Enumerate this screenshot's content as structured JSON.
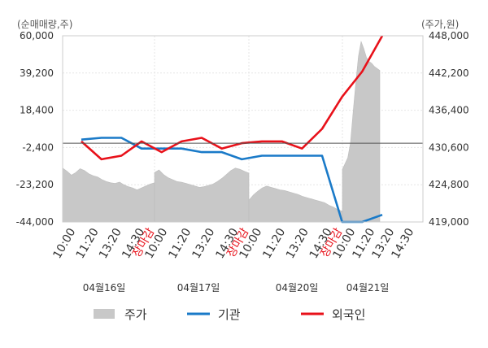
{
  "chart_data": {
    "type": "line",
    "y_left": {
      "unit_label": "(순매매량,주)",
      "ticks": [
        "60,000",
        "39,200",
        "18,400",
        "-2,400",
        "-23,200",
        "-44,000"
      ],
      "tick_values": [
        60000,
        39200,
        18400,
        -2400,
        -23200,
        -44000
      ],
      "range": [
        -44000,
        60000
      ]
    },
    "y_right": {
      "unit_label": "(주가,원)",
      "ticks": [
        "448,000",
        "442,200",
        "436,400",
        "430,600",
        "424,800",
        "419,000"
      ],
      "tick_values": [
        448000,
        442200,
        436400,
        430600,
        424800,
        419000
      ],
      "range": [
        419000,
        448000
      ]
    },
    "grid": true,
    "x_axis": {
      "session_ticks": [
        "10:00",
        "11:20",
        "13:20",
        "14:30"
      ],
      "close_label": "장마감",
      "last_session_ticks": [
        "10:00",
        "11:20",
        "13:20",
        "14:30"
      ],
      "dates": [
        "04월16일",
        "04월17일",
        "04월20일",
        "04월21일"
      ]
    },
    "zero_line_value": 0,
    "series": [
      {
        "name": "주가",
        "kind": "area",
        "color": "#c8c8c8",
        "axis": "right",
        "sessions": [
          [
            427.4,
            426.9,
            426.3,
            426.7,
            427.3,
            427.0,
            426.5,
            426.2,
            426.0,
            425.6,
            425.3,
            425.1,
            425.0,
            425.2,
            424.8,
            424.5,
            424.3,
            424.0,
            424.3,
            424.6,
            424.9,
            425.1
          ],
          [
            426.7,
            427.1,
            426.4,
            425.9,
            425.6,
            425.3,
            425.2,
            425.0,
            424.8,
            424.6,
            424.4,
            424.5,
            424.7,
            424.9,
            425.3,
            425.8,
            426.4,
            427.0,
            427.4,
            427.2,
            426.9,
            426.6
          ],
          [
            422.4,
            423.2,
            423.8,
            424.3,
            424.6,
            424.4,
            424.2,
            424.0,
            423.9,
            423.7,
            423.5,
            423.3,
            423.0,
            422.8,
            422.6,
            422.4,
            422.2,
            422.0,
            421.6,
            421.3,
            420.9,
            420.7
          ],
          [
            427.2,
            428.1,
            429.0,
            431.3,
            436.0,
            440.6,
            444.8,
            447.1,
            446.0,
            444.6,
            444.0,
            443.7,
            443.2,
            442.9,
            442.6
          ]
        ]
      },
      {
        "name": "기관",
        "kind": "line",
        "color": "#1a7ac8",
        "axis": "left",
        "values": [
          2000,
          3000,
          3000,
          -3000,
          -3000,
          -3000,
          -5000,
          -5000,
          -9000,
          -7000,
          -7000,
          -7000,
          -7000,
          -44000,
          -44000,
          -40000
        ]
      },
      {
        "name": "외국인",
        "kind": "line",
        "color": "#e8111a",
        "axis": "left",
        "values": [
          1000,
          -9000,
          -7000,
          1000,
          -5000,
          1000,
          3000,
          -3000,
          0,
          1000,
          1000,
          -3000,
          8000,
          26000,
          40000,
          60000
        ]
      }
    ]
  }
}
